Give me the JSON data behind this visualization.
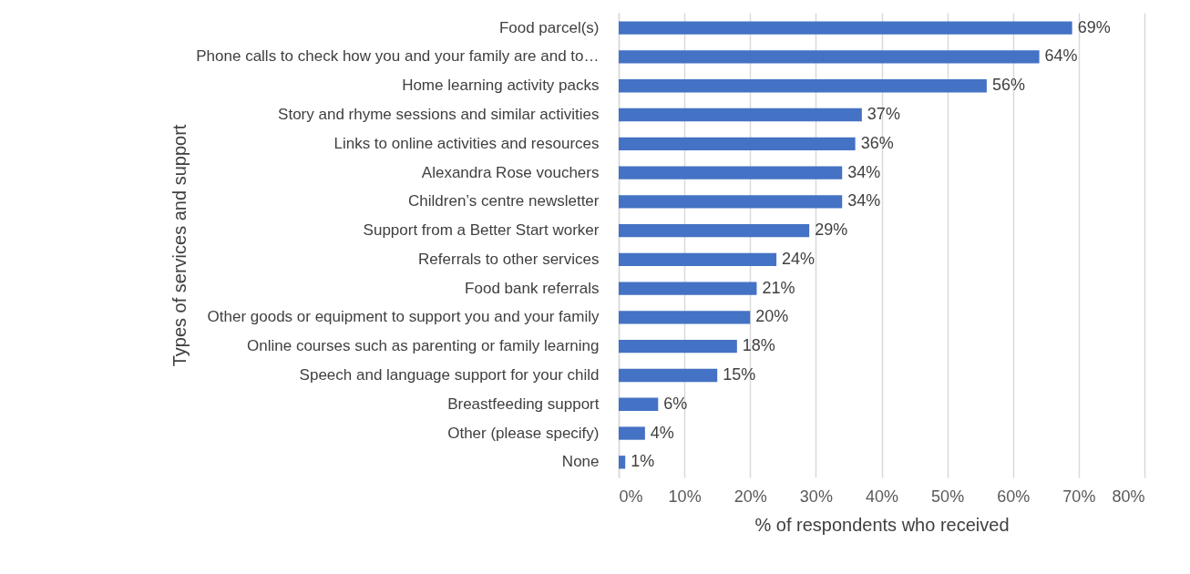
{
  "chart_data": {
    "type": "bar",
    "orientation": "horizontal",
    "xlabel": "% of respondents who received",
    "ylabel": "Types of services and support",
    "categories": [
      "Food parcel(s)",
      "Phone calls to check how you and your family are and to…",
      "Home learning activity packs",
      "Story and rhyme sessions and similar activities",
      "Links to online activities and resources",
      "Alexandra Rose vouchers",
      "Children’s centre newsletter",
      "Support from a Better Start worker",
      "Referrals to other services",
      "Food bank referrals",
      "Other goods or equipment to support you and your family",
      "Online courses such as parenting or family learning",
      "Speech and language support for your child",
      "Breastfeeding support",
      "Other (please specify)",
      "None"
    ],
    "values": [
      69,
      64,
      56,
      37,
      36,
      34,
      34,
      29,
      24,
      21,
      20,
      18,
      15,
      6,
      4,
      1
    ],
    "value_labels": [
      "69%",
      "64%",
      "56%",
      "37%",
      "36%",
      "34%",
      "34%",
      "29%",
      "24%",
      "21%",
      "20%",
      "18%",
      "15%",
      "6%",
      "4%",
      "1%"
    ],
    "color": "#4472c4",
    "xlim": [
      0,
      80
    ],
    "xticks": [
      {
        "value": 0,
        "label": "0%"
      },
      {
        "value": 10,
        "label": "10%"
      },
      {
        "value": 20,
        "label": "20%"
      },
      {
        "value": 30,
        "label": "30%"
      },
      {
        "value": 40,
        "label": "40%"
      },
      {
        "value": 50,
        "label": "50%"
      },
      {
        "value": 60,
        "label": "60%"
      },
      {
        "value": 70,
        "label": "70%"
      },
      {
        "value": 80,
        "label": "80%"
      }
    ],
    "grid": "x"
  }
}
